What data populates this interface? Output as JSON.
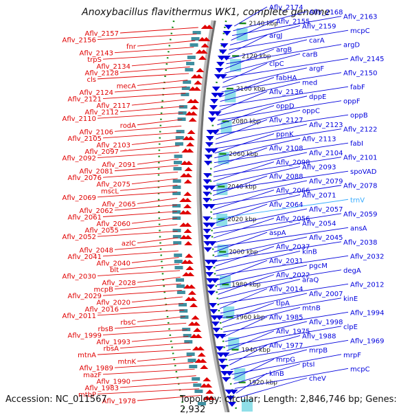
{
  "title": "Anoxybacillus flavithermus WK1, complete genome",
  "footer": {
    "accession": "Accession: NC_011567",
    "topology": "Topology: circular; Length: 2,846,746 bp; Genes: 2,932"
  },
  "colors": {
    "minus_strand": "#e00000",
    "plus_strand": "#0000dd",
    "rna": "#33aaff",
    "tick": "#1a8a1a"
  },
  "kbp_ticks": [
    "2140 kbp",
    "2120 kbp",
    "2100 kbp",
    "2080 kbp",
    "2060 kbp",
    "2040 kbp",
    "2020 kbp",
    "2000 kbp",
    "1980 kbp",
    "1960 kbp",
    "1940 kbp",
    "1920 kbp"
  ],
  "left_labels": [
    "Aflv_2157",
    "Aflv_2156",
    "fnr",
    "Aflv_2143",
    "trpS",
    "Aflv_2134",
    "Aflv_2128",
    "cls",
    "mecA",
    "Aflv_2124",
    "Aflv_2121",
    "Aflv_2117",
    "Aflv_2112",
    "Aflv_2110",
    "rodA",
    "Aflv_2106",
    "Aflv_2105",
    "Aflv_2103",
    "Aflv_2097",
    "Aflv_2092",
    "Aflv_2091",
    "Aflv_2081",
    "Aflv_2076",
    "Aflv_2075",
    "mscL",
    "Aflv_2069",
    "Aflv_2065",
    "Aflv_2062",
    "Aflv_2061",
    "Aflv_2060",
    "Aflv_2055",
    "Aflv_2052",
    "azlC",
    "Aflv_2048",
    "Aflv_2041",
    "Aflv_2040",
    "blt",
    "Aflv_2030",
    "Aflv_2028",
    "mcpB",
    "Aflv_2029",
    "Aflv_2020",
    "Aflv_2016",
    "Aflv_2011",
    "rbsC",
    "rbsB",
    "Aflv_1999",
    "Aflv_1993",
    "rbsA",
    "mtnA",
    "mtnK",
    "Aflv_1989",
    "mazF",
    "Aflv_1990",
    "Aflv_1983",
    "mtbP",
    "Aflv_1978"
  ],
  "right_labels": [
    "Aflv_2174",
    "Aflv_2168",
    "Aflv_2163",
    "Aflv_2155",
    "Aflv_2159",
    "mcpC",
    "argJ",
    "carA",
    "argD",
    "argB",
    "carB",
    "Aflv_2145",
    "clpC",
    "argF",
    "Aflv_2150",
    "fabHA",
    "med",
    "fabF",
    "Aflv_2136",
    "dppE",
    "oppF",
    "oppD",
    "oppC",
    "oppB",
    "Aflv_2127",
    "Aflv_2123",
    "Aflv_2122",
    "ppnK",
    "Aflv_2113",
    "fabI",
    "Aflv_2108",
    "Aflv_2104",
    "Aflv_2101",
    "Aflv_2098",
    "Aflv_2093",
    "spoVAD",
    "Aflv_2088",
    "Aflv_2079",
    "Aflv_2078",
    "Aflv_2066",
    "Aflv_2071",
    "trnV",
    "Aflv_2064",
    "Aflv_2057",
    "Aflv_2059",
    "Aflv_2056",
    "Aflv_2054",
    "ansA",
    "aspA",
    "Aflv_2045",
    "Aflv_2038",
    "Aflv_2037",
    "kinB",
    "Aflv_2032",
    "Aflv_2031",
    "pgcM",
    "degA",
    "Aflv_2022",
    "araQ",
    "Aflv_2012",
    "Aflv_2014",
    "Aflv_2007",
    "kinE",
    "tlpA",
    "mtnB",
    "Aflv_1994",
    "Aflv_1985",
    "Aflv_1998",
    "clpE",
    "Aflv_1975",
    "Aflv_1988",
    "Aflv_1969",
    "Aflv_1977",
    "mrpB",
    "mrpF",
    "mrpG",
    "ptsI",
    "mcpC",
    "kinB",
    "cheV"
  ]
}
